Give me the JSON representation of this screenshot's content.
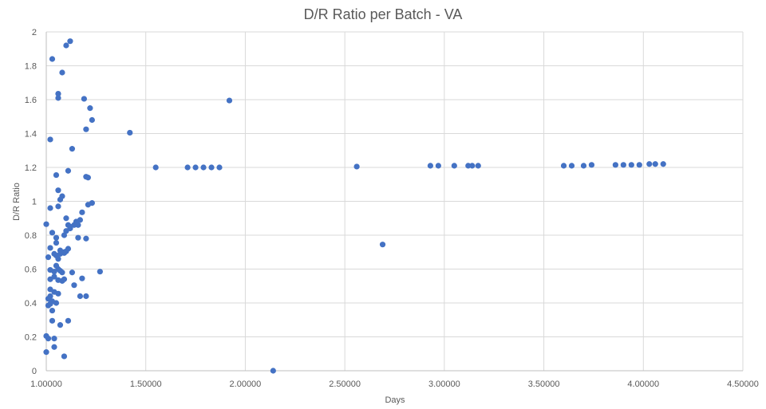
{
  "chart_data": {
    "type": "scatter",
    "title": "D/R Ratio per Batch - VA",
    "xlabel": "Days",
    "ylabel": "D/R Ratio",
    "xlim": [
      1.0,
      4.5
    ],
    "ylim": [
      0,
      2
    ],
    "x_ticks": [
      "1.00000",
      "1.50000",
      "2.00000",
      "2.50000",
      "3.00000",
      "3.50000",
      "4.00000",
      "4.50000"
    ],
    "y_ticks": [
      "0",
      "0.2",
      "0.4",
      "0.6",
      "0.8",
      "1",
      "1.2",
      "1.4",
      "1.6",
      "1.8",
      "2"
    ],
    "grid": true,
    "legend": "none",
    "marker_color": "#4472c4",
    "points": [
      [
        1.12,
        1.945
      ],
      [
        1.1,
        1.92
      ],
      [
        1.03,
        1.84
      ],
      [
        1.08,
        1.76
      ],
      [
        1.06,
        1.635
      ],
      [
        1.06,
        1.61
      ],
      [
        1.19,
        1.605
      ],
      [
        1.92,
        1.595
      ],
      [
        1.22,
        1.55
      ],
      [
        1.23,
        1.48
      ],
      [
        1.2,
        1.425
      ],
      [
        1.42,
        1.405
      ],
      [
        1.02,
        1.365
      ],
      [
        1.13,
        1.31
      ],
      [
        1.55,
        1.2
      ],
      [
        1.71,
        1.2
      ],
      [
        1.75,
        1.2
      ],
      [
        1.79,
        1.2
      ],
      [
        1.83,
        1.2
      ],
      [
        1.87,
        1.2
      ],
      [
        2.56,
        1.205
      ],
      [
        2.93,
        1.21
      ],
      [
        2.97,
        1.21
      ],
      [
        3.05,
        1.21
      ],
      [
        3.12,
        1.21
      ],
      [
        3.14,
        1.21
      ],
      [
        3.17,
        1.21
      ],
      [
        3.6,
        1.21
      ],
      [
        3.64,
        1.21
      ],
      [
        3.7,
        1.21
      ],
      [
        3.74,
        1.215
      ],
      [
        3.86,
        1.215
      ],
      [
        3.9,
        1.215
      ],
      [
        3.94,
        1.215
      ],
      [
        3.98,
        1.215
      ],
      [
        4.03,
        1.22
      ],
      [
        4.06,
        1.22
      ],
      [
        4.1,
        1.22
      ],
      [
        1.11,
        1.18
      ],
      [
        1.05,
        1.155
      ],
      [
        1.2,
        1.145
      ],
      [
        1.21,
        1.14
      ],
      [
        1.06,
        1.065
      ],
      [
        1.08,
        1.03
      ],
      [
        1.07,
        1.01
      ],
      [
        1.23,
        0.99
      ],
      [
        1.21,
        0.98
      ],
      [
        1.06,
        0.97
      ],
      [
        1.02,
        0.96
      ],
      [
        1.18,
        0.935
      ],
      [
        1.1,
        0.9
      ],
      [
        1.17,
        0.89
      ],
      [
        1.15,
        0.88
      ],
      [
        1.0,
        0.865
      ],
      [
        1.11,
        0.86
      ],
      [
        1.14,
        0.86
      ],
      [
        1.12,
        0.85
      ],
      [
        1.16,
        0.86
      ],
      [
        1.12,
        0.84
      ],
      [
        1.1,
        0.825
      ],
      [
        1.03,
        0.815
      ],
      [
        1.09,
        0.8
      ],
      [
        1.05,
        0.785
      ],
      [
        1.16,
        0.785
      ],
      [
        1.2,
        0.78
      ],
      [
        1.05,
        0.755
      ],
      [
        1.02,
        0.725
      ],
      [
        1.11,
        0.72
      ],
      [
        1.07,
        0.71
      ],
      [
        2.69,
        0.745
      ],
      [
        1.04,
        0.69
      ],
      [
        1.1,
        0.705
      ],
      [
        1.09,
        0.695
      ],
      [
        1.07,
        0.69
      ],
      [
        1.05,
        0.68
      ],
      [
        1.01,
        0.67
      ],
      [
        1.06,
        0.66
      ],
      [
        1.09,
        0.7
      ],
      [
        1.05,
        0.62
      ],
      [
        1.06,
        0.6
      ],
      [
        1.02,
        0.595
      ],
      [
        1.07,
        0.59
      ],
      [
        1.04,
        0.585
      ],
      [
        1.13,
        0.58
      ],
      [
        1.27,
        0.585
      ],
      [
        1.08,
        0.58
      ],
      [
        1.04,
        0.555
      ],
      [
        1.02,
        0.54
      ],
      [
        1.18,
        0.545
      ],
      [
        1.06,
        0.535
      ],
      [
        1.08,
        0.53
      ],
      [
        1.14,
        0.505
      ],
      [
        1.09,
        0.54
      ],
      [
        1.02,
        0.48
      ],
      [
        1.04,
        0.465
      ],
      [
        1.06,
        0.455
      ],
      [
        1.02,
        0.44
      ],
      [
        1.17,
        0.44
      ],
      [
        1.2,
        0.44
      ],
      [
        1.01,
        0.425
      ],
      [
        1.03,
        0.41
      ],
      [
        1.02,
        0.395
      ],
      [
        1.05,
        0.4
      ],
      [
        1.01,
        0.385
      ],
      [
        1.03,
        0.355
      ],
      [
        1.03,
        0.295
      ],
      [
        1.11,
        0.295
      ],
      [
        1.07,
        0.27
      ],
      [
        1.0,
        0.205
      ],
      [
        1.01,
        0.19
      ],
      [
        1.04,
        0.19
      ],
      [
        1.04,
        0.14
      ],
      [
        1.0,
        0.11
      ],
      [
        1.09,
        0.085
      ],
      [
        2.14,
        0.0
      ]
    ]
  }
}
